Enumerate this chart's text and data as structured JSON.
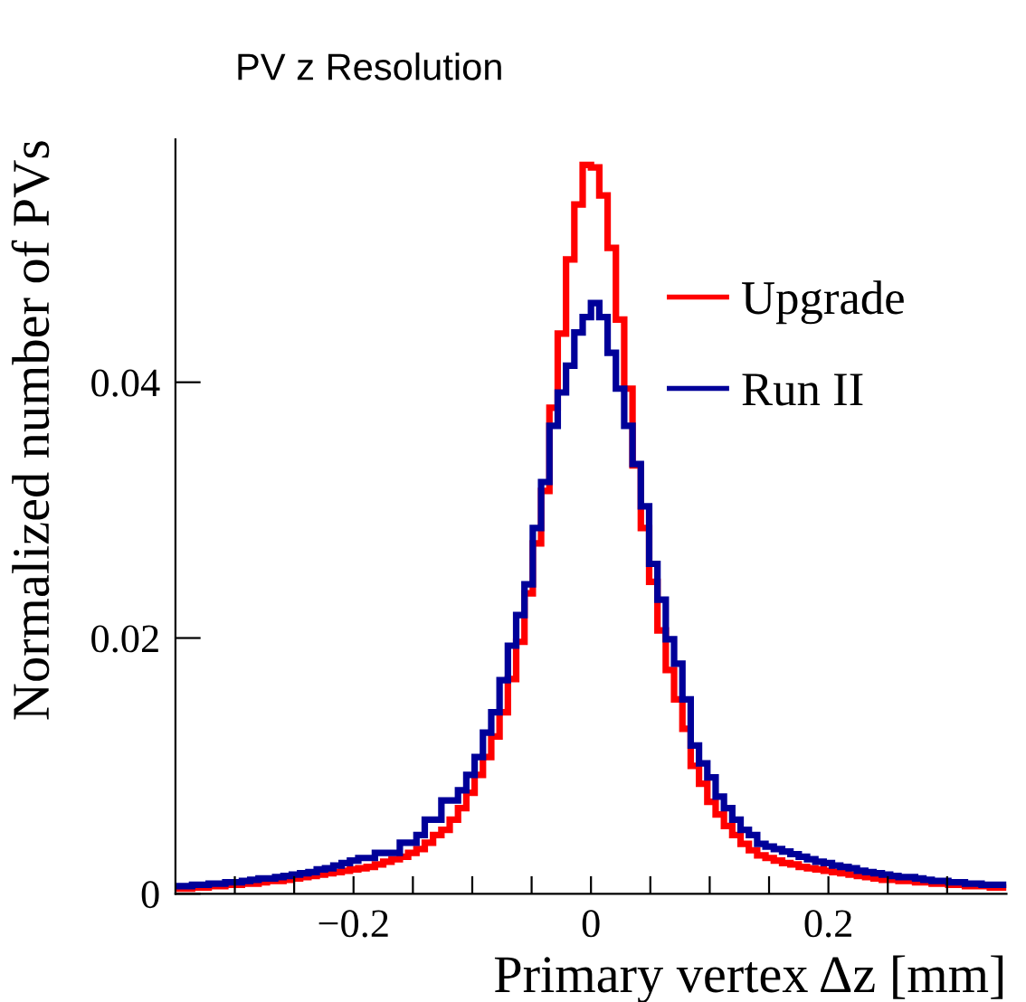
{
  "chart_data": {
    "type": "histogram",
    "title": "PV z Resolution",
    "xlabel": "Primary vertex Δz [mm]",
    "ylabel": "Normalized number of PVs",
    "bins": [
      -0.35,
      -0.343,
      -0.336,
      -0.329,
      -0.322,
      -0.315,
      -0.308,
      -0.301,
      -0.294,
      -0.287,
      -0.28,
      -0.273,
      -0.266,
      -0.259,
      -0.252,
      -0.245,
      -0.238,
      -0.231,
      -0.224,
      -0.217,
      -0.21,
      -0.203,
      -0.196,
      -0.189,
      -0.182,
      -0.175,
      -0.168,
      -0.161,
      -0.154,
      -0.147,
      -0.14,
      -0.133,
      -0.126,
      -0.119,
      -0.112,
      -0.105,
      -0.098,
      -0.091,
      -0.084,
      -0.077,
      -0.07,
      -0.063,
      -0.056,
      -0.049,
      -0.042,
      -0.035,
      -0.028,
      -0.021,
      -0.014,
      -0.007,
      0,
      0.007,
      0.014,
      0.021,
      0.028,
      0.035,
      0.042,
      0.049,
      0.056,
      0.063,
      0.07,
      0.077,
      0.084,
      0.091,
      0.098,
      0.105,
      0.112,
      0.119,
      0.126,
      0.133,
      0.14,
      0.147,
      0.154,
      0.161,
      0.168,
      0.175,
      0.182,
      0.189,
      0.196,
      0.203,
      0.21,
      0.217,
      0.224,
      0.231,
      0.238,
      0.245,
      0.252,
      0.259,
      0.266,
      0.273,
      0.28,
      0.287,
      0.294,
      0.301,
      0.308,
      0.315,
      0.322,
      0.329,
      0.336,
      0.343,
      0.35
    ],
    "series": [
      {
        "name": "Upgrade",
        "color": "#ff0000",
        "values": [
          0.0004,
          0.0004,
          0.0005,
          0.0005,
          0.0006,
          0.0006,
          0.0007,
          0.0007,
          0.0008,
          0.0008,
          0.0009,
          0.001,
          0.001,
          0.0011,
          0.0012,
          0.0013,
          0.0014,
          0.0015,
          0.0016,
          0.0017,
          0.0018,
          0.0019,
          0.002,
          0.0021,
          0.0023,
          0.0025,
          0.0027,
          0.0029,
          0.0032,
          0.0035,
          0.004,
          0.0046,
          0.005,
          0.0058,
          0.0067,
          0.0079,
          0.0093,
          0.0107,
          0.0123,
          0.0142,
          0.0168,
          0.0197,
          0.0235,
          0.0274,
          0.0315,
          0.038,
          0.0438,
          0.0496,
          0.0539,
          0.057,
          0.0568,
          0.0546,
          0.0505,
          0.0449,
          0.0395,
          0.0335,
          0.0286,
          0.0244,
          0.0206,
          0.0175,
          0.0152,
          0.0129,
          0.01,
          0.0086,
          0.0072,
          0.0062,
          0.0053,
          0.0046,
          0.0039,
          0.0034,
          0.003,
          0.0028,
          0.0026,
          0.0024,
          0.0023,
          0.0021,
          0.002,
          0.0019,
          0.0018,
          0.0017,
          0.0016,
          0.0015,
          0.0014,
          0.0013,
          0.0012,
          0.0011,
          0.0011,
          0.001,
          0.001,
          0.0009,
          0.0009,
          0.0008,
          0.0008,
          0.0007,
          0.0007,
          0.0006,
          0.0006,
          0.0006,
          0.0005,
          0.0005
        ]
      },
      {
        "name": "Run II",
        "color": "#000099",
        "values": [
          0.0006,
          0.0006,
          0.0007,
          0.0007,
          0.0008,
          0.0008,
          0.0009,
          0.0009,
          0.001,
          0.0011,
          0.0012,
          0.0012,
          0.0013,
          0.0014,
          0.0015,
          0.0016,
          0.0017,
          0.0019,
          0.002,
          0.0022,
          0.0024,
          0.0026,
          0.0028,
          0.0028,
          0.0032,
          0.0032,
          0.0032,
          0.004,
          0.004,
          0.0046,
          0.0058,
          0.0058,
          0.0073,
          0.0073,
          0.0081,
          0.0093,
          0.0107,
          0.0126,
          0.0142,
          0.0167,
          0.0194,
          0.0218,
          0.0242,
          0.0286,
          0.0322,
          0.0366,
          0.0392,
          0.0413,
          0.0439,
          0.0451,
          0.0462,
          0.0451,
          0.0423,
          0.0395,
          0.0366,
          0.0336,
          0.0303,
          0.0258,
          0.023,
          0.0199,
          0.018,
          0.0152,
          0.0116,
          0.0102,
          0.0091,
          0.0076,
          0.0067,
          0.0058,
          0.005,
          0.0046,
          0.0039,
          0.0037,
          0.0035,
          0.0033,
          0.0031,
          0.0029,
          0.0027,
          0.0025,
          0.0024,
          0.0022,
          0.0021,
          0.002,
          0.0018,
          0.0017,
          0.0016,
          0.0015,
          0.0014,
          0.0013,
          0.0013,
          0.0012,
          0.0011,
          0.001,
          0.001,
          0.0009,
          0.0009,
          0.0008,
          0.0008,
          0.0007,
          0.0007,
          0.0007
        ]
      }
    ],
    "xlim": [
      -0.35,
      0.35
    ],
    "ylim": [
      0,
      0.059
    ],
    "xticks": [
      {
        "value": -0.3,
        "label": null
      },
      {
        "value": -0.25,
        "label": null
      },
      {
        "value": -0.2,
        "label": "−0.2"
      },
      {
        "value": -0.15,
        "label": null
      },
      {
        "value": -0.1,
        "label": null
      },
      {
        "value": -0.05,
        "label": null
      },
      0,
      {
        "value": 0.05,
        "label": null
      },
      {
        "value": 0.1,
        "label": null
      },
      {
        "value": 0.15,
        "label": null
      },
      0.2,
      {
        "value": 0.25,
        "label": null
      },
      {
        "value": 0.3,
        "label": null
      }
    ],
    "yticks": [
      0,
      0.02,
      0.04
    ],
    "legend": "top right"
  }
}
